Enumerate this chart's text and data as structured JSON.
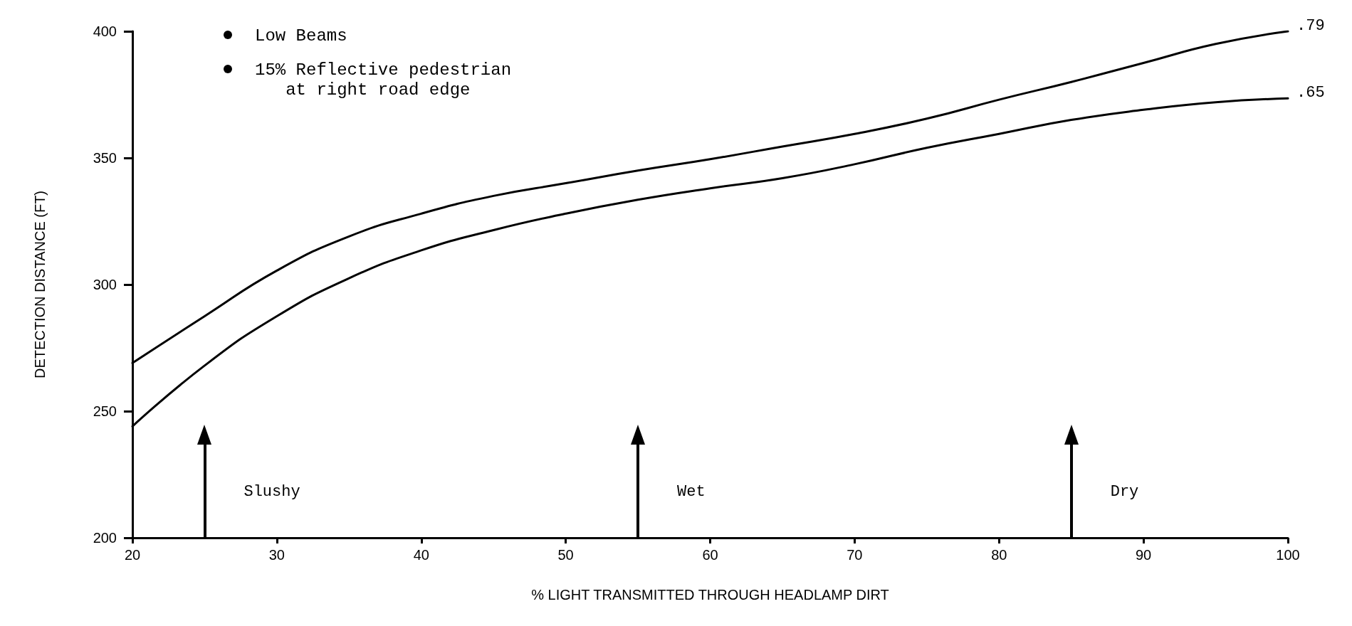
{
  "chart_data": {
    "type": "line",
    "xlabel": "% LIGHT TRANSMITTED THROUGH HEADLAMP DIRT",
    "ylabel": "DETECTION DISTANCE (FT)",
    "x": [
      20,
      25,
      30,
      35,
      40,
      45,
      50,
      55,
      60,
      65,
      70,
      75,
      80,
      85,
      90,
      95,
      100
    ],
    "series": [
      {
        "name": ".79",
        "color": "#000000",
        "values": [
          269,
          287.5,
          305.5,
          319,
          328,
          335,
          340,
          345,
          349.5,
          354.5,
          359.5,
          365.5,
          373,
          380,
          387.5,
          395,
          400
        ]
      },
      {
        "name": ".65",
        "color": "#000000",
        "values": [
          244,
          268,
          287.5,
          302.5,
          313.5,
          321.5,
          328,
          333.5,
          338,
          342,
          347.5,
          354,
          359.5,
          365,
          369,
          372,
          373.5
        ]
      }
    ],
    "xlim": [
      20,
      100
    ],
    "xticks": [
      20,
      30,
      40,
      50,
      60,
      70,
      80,
      90,
      100
    ],
    "ylim": [
      200,
      400
    ],
    "yticks": [
      200,
      250,
      300,
      350,
      400
    ],
    "grid": false,
    "legend": false,
    "marker": "none",
    "line_style": "solid",
    "ref_lines": [
      {
        "axis": "x",
        "value": 25,
        "label": "Slushy"
      },
      {
        "axis": "x",
        "value": 55,
        "label": "Wet"
      },
      {
        "axis": "x",
        "value": 85,
        "label": "Dry"
      }
    ],
    "annotations": [
      "Low Beams",
      "15% Reflective pedestrian\n   at right road edge"
    ]
  }
}
